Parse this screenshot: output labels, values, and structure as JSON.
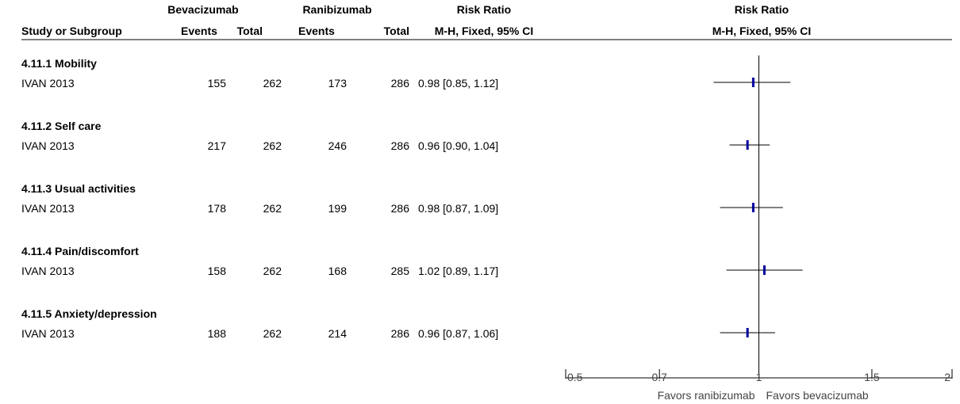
{
  "header": {
    "study_col": "Study or Subgroup",
    "group1_name": "Bevacizumab",
    "group2_name": "Ranibizumab",
    "events_label": "Events",
    "total_label": "Total",
    "rr_title": "Risk Ratio",
    "rr_method": "M-H, Fixed, 95% CI",
    "plot_title": "Risk Ratio",
    "plot_method": "M-H, Fixed, 95% CI"
  },
  "colors": {
    "marker": "#0000a0",
    "line": "#000000"
  },
  "chart_data": {
    "type": "forest",
    "scale": "log",
    "xlim": [
      0.5,
      2
    ],
    "xticks": [
      0.5,
      0.7,
      1,
      1.5,
      2
    ],
    "xtick_labels": [
      "0.5",
      "0.7",
      "1",
      "1.5",
      "2"
    ],
    "favors_left": "Favors ranibizumab",
    "favors_right": "Favors bevacizumab",
    "subgroups": [
      {
        "title": "4.11.1 Mobility",
        "study": "IVAN 2013",
        "e1": "155",
        "t1": "262",
        "e2": "173",
        "t2": "286",
        "rr_text": "0.98 [0.85, 1.12]",
        "rr": 0.98,
        "lo": 0.85,
        "hi": 1.12
      },
      {
        "title": "4.11.2 Self care",
        "study": "IVAN 2013",
        "e1": "217",
        "t1": "262",
        "e2": "246",
        "t2": "286",
        "rr_text": "0.96 [0.90, 1.04]",
        "rr": 0.96,
        "lo": 0.9,
        "hi": 1.04
      },
      {
        "title": "4.11.3 Usual activities",
        "study": "IVAN 2013",
        "e1": "178",
        "t1": "262",
        "e2": "199",
        "t2": "286",
        "rr_text": "0.98 [0.87, 1.09]",
        "rr": 0.98,
        "lo": 0.87,
        "hi": 1.09
      },
      {
        "title": "4.11.4 Pain/discomfort",
        "study": "IVAN 2013",
        "e1": "158",
        "t1": "262",
        "e2": "168",
        "t2": "285",
        "rr_text": "1.02 [0.89, 1.17]",
        "rr": 1.02,
        "lo": 0.89,
        "hi": 1.17
      },
      {
        "title": "4.11.5 Anxiety/depression",
        "study": "IVAN 2013",
        "e1": "188",
        "t1": "262",
        "e2": "214",
        "t2": "286",
        "rr_text": "0.96 [0.87, 1.06]",
        "rr": 0.96,
        "lo": 0.87,
        "hi": 1.06
      }
    ]
  }
}
